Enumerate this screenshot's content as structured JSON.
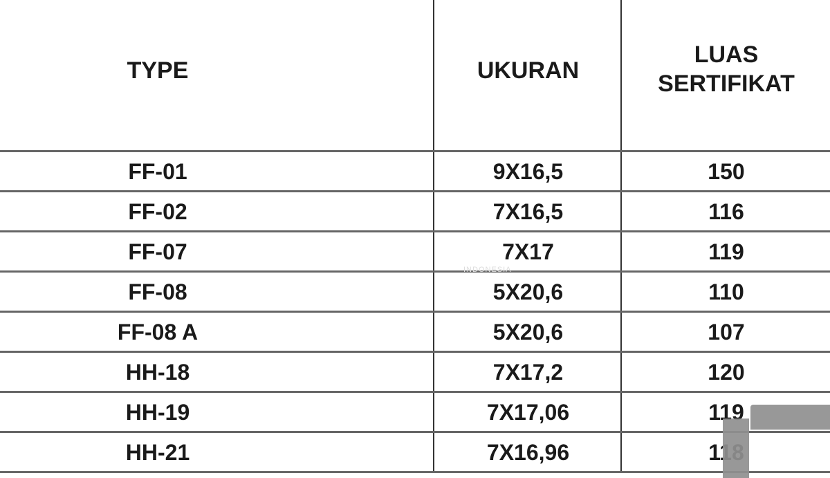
{
  "table": {
    "headers": [
      "TYPE",
      "UKURAN",
      "LUAS\nSERTIFIKAT"
    ],
    "header_luas_line1": "LUAS",
    "header_luas_line2": "SERTIFIKAT",
    "rows": [
      {
        "type": "FF-01",
        "ukuran": "9X16,5",
        "luas": "150"
      },
      {
        "type": "FF-02",
        "ukuran": "7X16,5",
        "luas": "116"
      },
      {
        "type": "FF-07",
        "ukuran": "7X17",
        "luas": "119"
      },
      {
        "type": "FF-08",
        "ukuran": "5X20,6",
        "luas": "110"
      },
      {
        "type": "FF-08 A",
        "ukuran": "5X20,6",
        "luas": "107"
      },
      {
        "type": "HH-18",
        "ukuran": "7X17,2",
        "luas": "120"
      },
      {
        "type": "HH-19",
        "ukuran": "7X17,06",
        "luas": "119"
      },
      {
        "type": "HH-21",
        "ukuran": "7X16,96",
        "luas": "118"
      }
    ]
  },
  "watermark": "INDONESIA"
}
